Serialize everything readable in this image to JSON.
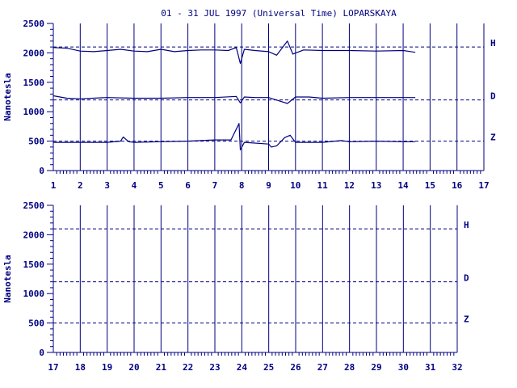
{
  "chart_data": [
    {
      "type": "line",
      "title": "01 - 31 JUL 1997 (Universal Time) LOPARSKAYA",
      "ylabel": "Nanotesla",
      "xlabel": "",
      "xlim": [
        1,
        17
      ],
      "ylim": [
        0,
        2500
      ],
      "x_ticks": [
        "1",
        "2",
        "3",
        "4",
        "5",
        "6",
        "7",
        "8",
        "9",
        "10",
        "11",
        "12",
        "13",
        "14",
        "15",
        "16",
        "17"
      ],
      "y_ticks": [
        "0",
        "500",
        "1000",
        "1500",
        "2000",
        "2500"
      ],
      "grid": "vertical solid lines at each day",
      "baselines": [
        {
          "label": "H",
          "value": 2100
        },
        {
          "label": "D",
          "value": 1200
        },
        {
          "label": "Z",
          "value": 500
        }
      ],
      "series": [
        {
          "component": "H",
          "data_end": 14.45,
          "points": [
            [
              1,
              2090
            ],
            [
              1.5,
              2080
            ],
            [
              2,
              2030
            ],
            [
              2.5,
              2020
            ],
            [
              3,
              2040
            ],
            [
              3.5,
              2060
            ],
            [
              4,
              2030
            ],
            [
              4.5,
              2020
            ],
            [
              5,
              2060
            ],
            [
              5.5,
              2020
            ],
            [
              6,
              2040
            ],
            [
              6.5,
              2050
            ],
            [
              7,
              2050
            ],
            [
              7.5,
              2040
            ],
            [
              7.8,
              2090
            ],
            [
              7.95,
              1820
            ],
            [
              8.1,
              2060
            ],
            [
              8.5,
              2040
            ],
            [
              9,
              2020
            ],
            [
              9.3,
              1960
            ],
            [
              9.7,
              2200
            ],
            [
              9.9,
              1980
            ],
            [
              10.3,
              2050
            ],
            [
              11,
              2040
            ],
            [
              12,
              2040
            ],
            [
              13,
              2030
            ],
            [
              14,
              2040
            ],
            [
              14.45,
              2010
            ]
          ]
        },
        {
          "component": "D",
          "data_end": 14.45,
          "points": [
            [
              1,
              1270
            ],
            [
              1.5,
              1230
            ],
            [
              2,
              1220
            ],
            [
              3,
              1240
            ],
            [
              4,
              1230
            ],
            [
              5,
              1230
            ],
            [
              6,
              1240
            ],
            [
              7,
              1240
            ],
            [
              7.8,
              1260
            ],
            [
              7.95,
              1150
            ],
            [
              8.1,
              1250
            ],
            [
              8.5,
              1240
            ],
            [
              9,
              1240
            ],
            [
              9.7,
              1140
            ],
            [
              10,
              1250
            ],
            [
              10.5,
              1250
            ],
            [
              11,
              1230
            ],
            [
              12,
              1240
            ],
            [
              13,
              1240
            ],
            [
              14,
              1240
            ],
            [
              14.45,
              1240
            ]
          ]
        },
        {
          "component": "Z",
          "data_end": 14.45,
          "points": [
            [
              1,
              480
            ],
            [
              2,
              480
            ],
            [
              3,
              480
            ],
            [
              3.5,
              500
            ],
            [
              3.6,
              570
            ],
            [
              3.8,
              490
            ],
            [
              4,
              480
            ],
            [
              5,
              490
            ],
            [
              6,
              500
            ],
            [
              7,
              520
            ],
            [
              7.6,
              520
            ],
            [
              7.9,
              800
            ],
            [
              7.95,
              350
            ],
            [
              8.1,
              480
            ],
            [
              9,
              450
            ],
            [
              9.1,
              400
            ],
            [
              9.3,
              420
            ],
            [
              9.6,
              560
            ],
            [
              9.8,
              600
            ],
            [
              10,
              480
            ],
            [
              11,
              480
            ],
            [
              11.7,
              510
            ],
            [
              12,
              490
            ],
            [
              13,
              500
            ],
            [
              14,
              490
            ],
            [
              14.45,
              490
            ]
          ]
        }
      ]
    },
    {
      "type": "line",
      "title": "",
      "ylabel": "Nanotesla",
      "xlabel": "",
      "xlim": [
        17,
        32
      ],
      "ylim": [
        0,
        2500
      ],
      "x_ticks": [
        "17",
        "18",
        "19",
        "20",
        "21",
        "22",
        "23",
        "24",
        "25",
        "26",
        "27",
        "28",
        "29",
        "30",
        "31",
        "32"
      ],
      "y_ticks": [
        "0",
        "500",
        "1000",
        "1500",
        "2000",
        "2500"
      ],
      "grid": "vertical solid lines at each day",
      "baselines": [
        {
          "label": "H",
          "value": 2100
        },
        {
          "label": "D",
          "value": 1200
        },
        {
          "label": "Z",
          "value": 500
        }
      ],
      "series": []
    }
  ]
}
